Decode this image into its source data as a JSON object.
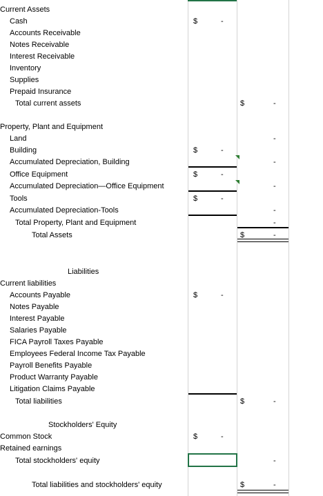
{
  "sheet": {
    "current_assets": {
      "header": "Current Assets",
      "items": [
        "Cash",
        "Accounts Receivable",
        "Notes Receivable",
        "Interest Receivable",
        "Inventory",
        "Supplies",
        "Prepaid Insurance"
      ],
      "total": "Total current assets"
    },
    "ppe": {
      "header": "Property, Plant and Equipment",
      "items": [
        "Land",
        "Building",
        "Accumulated Depreciation, Building",
        "Office Equipment",
        "Accumulated Depreciation—Office Equipment",
        "Tools",
        "Accumulated Depreciation-Tools"
      ],
      "total": "Total Property, Plant and Equipment",
      "total_assets": "Total Assets"
    },
    "liabilities": {
      "title": "Liabilities",
      "header": "Current liabilities",
      "items": [
        "Accounts Payable",
        "Notes Payable",
        "Interest Payable",
        "Salaries Payable",
        "FICA Payroll Taxes Payable",
        "Employees Federal Income Tax Payable",
        "Payroll Benefits Payable",
        "Product Warranty Payable",
        "Litigation Claims Payable"
      ],
      "total": "Total liabilities"
    },
    "equity": {
      "title": "Stockholders' Equity",
      "items": [
        "Common Stock",
        "Retained earnings"
      ],
      "total": "Total stockholders' equity",
      "grand_total": "Total liabilities and stockholders' equity"
    },
    "currency_symbol": "$",
    "zero_mark": "-",
    "colors": {
      "selection": "#217346",
      "comment_triangle": "#2e7d32",
      "gridline": "#d4d4d4"
    }
  }
}
